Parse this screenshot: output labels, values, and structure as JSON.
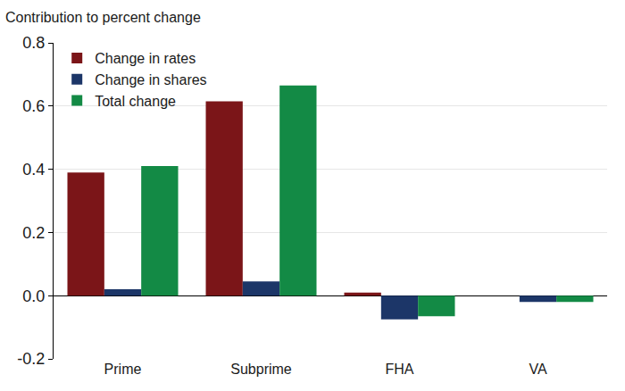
{
  "chart_data": {
    "type": "bar",
    "y_label": "Contribution to percent change",
    "categories": [
      "Prime",
      "Subprime",
      "FHA",
      "VA"
    ],
    "series": [
      {
        "name": "Change in rates",
        "color": "#7b1518",
        "values": [
          0.39,
          0.615,
          0.01,
          0.0
        ]
      },
      {
        "name": "Change in shares",
        "color": "#1c3668",
        "values": [
          0.02,
          0.045,
          -0.075,
          -0.02
        ]
      },
      {
        "name": "Total change",
        "color": "#138a45",
        "values": [
          0.41,
          0.665,
          -0.065,
          -0.02
        ]
      }
    ],
    "ylim": [
      -0.2,
      0.8
    ],
    "yticks": [
      -0.2,
      {
        "value": 0,
        "label": "0.0"
      },
      0.2,
      0.4,
      0.6,
      0.8
    ],
    "grid": true,
    "legend": "top left"
  }
}
